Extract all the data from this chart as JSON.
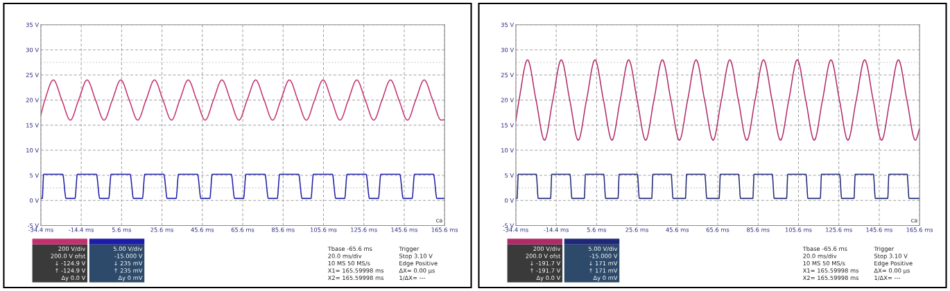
{
  "chart_data": [
    {
      "type": "line",
      "xlim": [
        -34.4,
        165.6
      ],
      "ylim": [
        -5,
        35
      ],
      "xticks": [
        {
          "value": -34.4,
          "label": "-34.4 ms"
        },
        {
          "value": -14.4,
          "label": "-14.4 ms"
        },
        {
          "value": 5.6,
          "label": "5.6 ms"
        },
        {
          "value": 25.6,
          "label": "25.6 ms"
        },
        {
          "value": 45.6,
          "label": "45.6 ms"
        },
        {
          "value": 65.6,
          "label": "65.6 ms"
        },
        {
          "value": 85.6,
          "label": "85.6 ms"
        },
        {
          "value": 105.6,
          "label": "105.6 ms"
        },
        {
          "value": 125.6,
          "label": "125.6 ms"
        },
        {
          "value": 145.6,
          "label": "145.6 ms"
        },
        {
          "value": 165.6,
          "label": "165.6 ms"
        }
      ],
      "yticks": [
        {
          "value": -5,
          "label": "-5 V"
        },
        {
          "value": 0,
          "label": "0 V"
        },
        {
          "value": 5,
          "label": "5 V"
        },
        {
          "value": 10,
          "label": "10 V"
        },
        {
          "value": 15,
          "label": "15 V"
        },
        {
          "value": 20,
          "label": "20 V"
        },
        {
          "value": 25,
          "label": "25 V"
        },
        {
          "value": 30,
          "label": "30 V"
        },
        {
          "value": 35,
          "label": "35 V"
        }
      ],
      "grid": true,
      "line_style": "solid",
      "marker": "none",
      "ref_lines": [
        {
          "axis": "y",
          "value": 27.5,
          "color": "#d4d4d4",
          "line_style": "dotted"
        },
        {
          "axis": "y",
          "value": 2.5,
          "color": "#d4d4d4",
          "line_style": "dotted"
        }
      ],
      "series": [
        {
          "color": "#c2306e",
          "x": [
            -34.4,
            -32.4,
            -28.2,
            -24.0,
            -19.8,
            -15.7,
            -11.5,
            -7.3,
            -3.1,
            1.0,
            5.2,
            9.4,
            13.6,
            17.7,
            21.9,
            26.1,
            30.3,
            34.4,
            38.6,
            42.8,
            47.0,
            51.1,
            55.3,
            59.5,
            63.7,
            67.8,
            72.0,
            76.2,
            80.4,
            84.5,
            88.7,
            92.9,
            97.1,
            101.2,
            105.4,
            109.6,
            113.8,
            117.9,
            122.1,
            126.3,
            130.5,
            134.6,
            138.8,
            143.0,
            147.2,
            151.3,
            155.5,
            159.7,
            163.9,
            165.6
          ],
          "values": [
            17.0,
            20,
            24,
            20,
            16,
            20,
            24,
            20,
            16,
            20,
            24,
            20,
            16,
            20,
            24,
            20,
            16,
            20,
            24,
            20,
            16,
            20,
            24,
            20,
            16,
            20,
            24,
            20,
            16,
            20,
            24,
            20,
            16,
            20,
            24,
            20,
            16,
            20,
            24,
            20,
            16,
            20,
            24,
            20,
            16,
            20,
            24,
            20,
            16,
            16.1
          ]
        },
        {
          "color": "#1c1ca8",
          "x": [
            -34.4,
            -33.7,
            -33.0,
            -23.6,
            -21.9,
            -17.5,
            -16.3,
            -6.9,
            -5.2,
            -0.8,
            0.4,
            9.8,
            11.5,
            15.9,
            17.1,
            26.5,
            28.2,
            32.6,
            33.8,
            43.2,
            44.9,
            49.3,
            50.5,
            59.9,
            61.6,
            66.0,
            67.2,
            76.6,
            78.3,
            82.7,
            83.9,
            93.3,
            95.0,
            99.4,
            100.6,
            110.0,
            111.7,
            116.1,
            117.3,
            126.7,
            128.4,
            132.8,
            134.0,
            143.4,
            145.1,
            149.5,
            150.7,
            160.1,
            161.8,
            165.6
          ],
          "values": [
            0.4,
            0.4,
            5.2,
            5.2,
            0.4,
            0.4,
            5.2,
            5.2,
            0.4,
            0.4,
            5.2,
            5.2,
            0.4,
            0.4,
            5.2,
            5.2,
            0.4,
            0.4,
            5.2,
            5.2,
            0.4,
            0.4,
            5.2,
            5.2,
            0.4,
            0.4,
            5.2,
            5.2,
            0.4,
            0.4,
            5.2,
            5.2,
            0.4,
            0.4,
            5.2,
            5.2,
            0.4,
            0.4,
            5.2,
            5.2,
            0.4,
            0.4,
            5.2,
            5.2,
            0.4,
            0.4,
            5.2,
            5.2,
            0.4,
            0.4
          ]
        }
      ],
      "annotations": [
        "200 V/div",
        "200.0 V ofst",
        "↓ -124.9 V",
        "↑ -124.9 V",
        "Δy 0.0 V",
        "5.00 V/div",
        "-15.000 V",
        "↓ 235 mV",
        "↑ 235 mV",
        "Δy 0 mV",
        "Tbase -65.6 ms",
        "20.0 ms/div",
        "10 MS 50 MS/s",
        "X1= 165.59998 ms",
        "X2= 165.59998 ms",
        "Trigger",
        "Stop 3.10 V",
        "Edge Positive",
        "ΔX= 0.00 µs",
        "1/ΔX= ---",
        "ca"
      ]
    },
    {
      "type": "line",
      "xlim": [
        -34.4,
        165.6
      ],
      "ylim": [
        -5,
        35
      ],
      "xticks": [
        {
          "value": -34.4,
          "label": "-34.4 ms"
        },
        {
          "value": -14.4,
          "label": "-14.4 ms"
        },
        {
          "value": 5.6,
          "label": "5.6 ms"
        },
        {
          "value": 25.6,
          "label": "25.6 ms"
        },
        {
          "value": 45.6,
          "label": "45.6 ms"
        },
        {
          "value": 65.6,
          "label": "65.6 ms"
        },
        {
          "value": 85.6,
          "label": "85.6 ms"
        },
        {
          "value": 105.6,
          "label": "105.6 ms"
        },
        {
          "value": 125.6,
          "label": "125.6 ms"
        },
        {
          "value": 145.6,
          "label": "145.6 ms"
        },
        {
          "value": 165.6,
          "label": "165.6 ms"
        }
      ],
      "yticks": [
        {
          "value": -5,
          "label": "-5 V"
        },
        {
          "value": 0,
          "label": "0 V"
        },
        {
          "value": 5,
          "label": "5 V"
        },
        {
          "value": 10,
          "label": "10 V"
        },
        {
          "value": 15,
          "label": "15 V"
        },
        {
          "value": 20,
          "label": "20 V"
        },
        {
          "value": 25,
          "label": "25 V"
        },
        {
          "value": 30,
          "label": "30 V"
        },
        {
          "value": 35,
          "label": "35 V"
        }
      ],
      "grid": true,
      "line_style": "solid",
      "marker": "none",
      "ref_lines": [
        {
          "axis": "y",
          "value": 27.5,
          "color": "#d4d4d4",
          "line_style": "dotted"
        },
        {
          "axis": "y",
          "value": 2.5,
          "color": "#d4d4d4",
          "line_style": "dotted"
        }
      ],
      "series": [
        {
          "color": "#b02a68",
          "x": [
            -34.4,
            -32.8,
            -28.6,
            -24.4,
            -20.2,
            -16.1,
            -11.9,
            -7.7,
            -3.5,
            0.6,
            4.8,
            9.0,
            13.2,
            17.3,
            21.5,
            25.7,
            29.9,
            34.0,
            38.2,
            42.4,
            46.6,
            50.7,
            54.9,
            59.1,
            63.3,
            67.4,
            71.6,
            75.8,
            80.0,
            84.1,
            88.3,
            92.5,
            96.7,
            100.8,
            105.0,
            109.2,
            113.4,
            117.5,
            121.7,
            125.9,
            130.1,
            134.2,
            138.4,
            142.6,
            146.8,
            150.9,
            155.1,
            159.3,
            163.5,
            165.6
          ],
          "values": [
            15.9,
            20,
            28,
            20,
            12,
            20,
            28,
            20,
            12,
            20,
            28,
            20,
            12,
            20,
            28,
            20,
            12,
            20,
            28,
            20,
            12,
            20,
            28,
            20,
            12,
            20,
            28,
            20,
            12,
            20,
            28,
            20,
            12,
            20,
            28,
            20,
            12,
            20,
            28,
            20,
            12,
            20,
            28,
            20,
            12,
            20,
            28,
            20,
            12,
            14.3
          ]
        },
        {
          "color": "#1f2878",
          "x": [
            -34.4,
            -33.8,
            -33.2,
            -24.3,
            -23.3,
            -17.2,
            -16.6,
            -7.6,
            -6.6,
            -0.5,
            0.1,
            9.1,
            10.1,
            16.2,
            16.8,
            25.8,
            26.8,
            32.9,
            33.5,
            42.5,
            43.5,
            49.6,
            50.2,
            59.2,
            60.2,
            66.3,
            66.9,
            75.9,
            76.9,
            83.0,
            83.6,
            92.6,
            93.6,
            99.7,
            100.3,
            109.3,
            110.3,
            116.4,
            117.0,
            126.0,
            127.0,
            133.1,
            133.7,
            142.7,
            143.7,
            149.8,
            150.4,
            159.4,
            160.4,
            165.6
          ],
          "values": [
            0.4,
            0.4,
            5.2,
            5.2,
            0.4,
            0.4,
            5.2,
            5.2,
            0.4,
            0.4,
            5.2,
            5.2,
            0.4,
            0.4,
            5.2,
            5.2,
            0.4,
            0.4,
            5.2,
            5.2,
            0.4,
            0.4,
            5.2,
            5.2,
            0.4,
            0.4,
            5.2,
            5.2,
            0.4,
            0.4,
            5.2,
            5.2,
            0.4,
            0.4,
            5.2,
            5.2,
            0.4,
            0.4,
            5.2,
            5.2,
            0.4,
            0.4,
            5.2,
            5.2,
            0.4,
            0.4,
            5.2,
            5.2,
            0.4,
            0.4
          ]
        }
      ],
      "annotations": [
        "200 V/div",
        "200.0 V ofst",
        "↓ -191.7 V",
        "↑ -191.7 V",
        "Δy 0.0 V",
        "5.00 V/div",
        "-15.000 V",
        "↓ 171 mV",
        "↑ 171 mV",
        "Δy 0 mV",
        "Tbase -65.6 ms",
        "20.0 ms/div",
        "10 MS 50 MS/s",
        "X1= 165.59998 ms",
        "X2= 165.59998 ms",
        "Trigger",
        "Stop 3.10 V",
        "Edge Positive",
        "ΔX= 0.00 µs",
        "1/ΔX= ---",
        "ca"
      ]
    }
  ]
}
